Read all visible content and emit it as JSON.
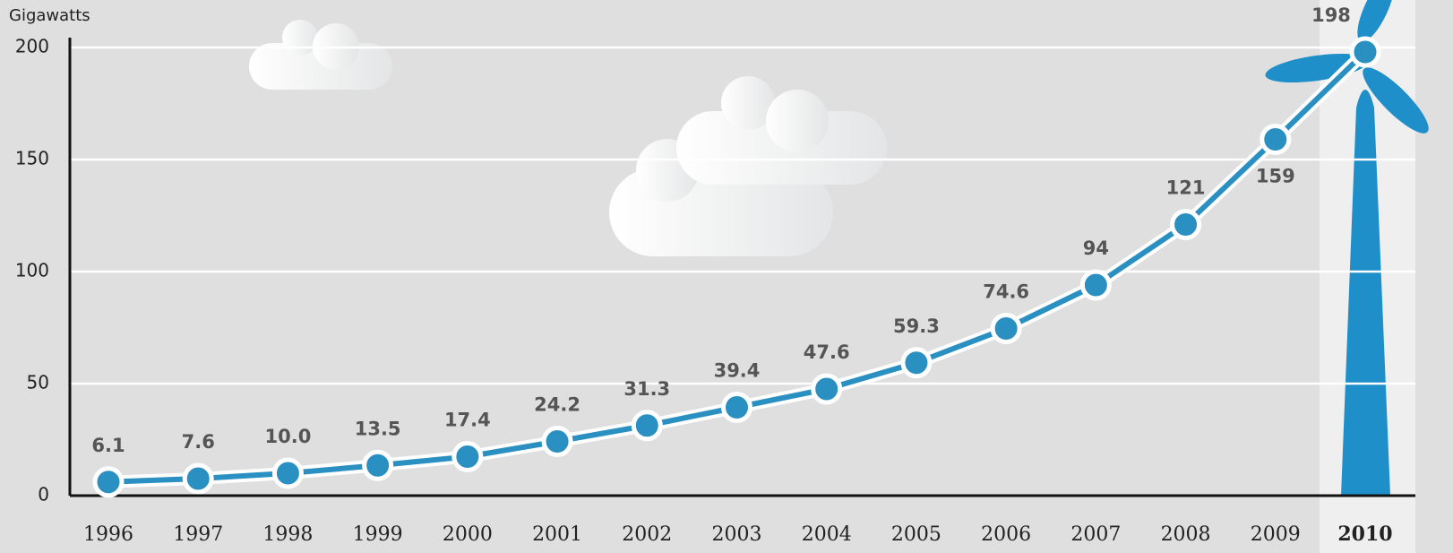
{
  "chart_data": {
    "type": "line",
    "y_label": "Gigawatts",
    "categories": [
      "1996",
      "1997",
      "1998",
      "1999",
      "2000",
      "2001",
      "2002",
      "2003",
      "2004",
      "2005",
      "2006",
      "2007",
      "2008",
      "2009",
      "2010"
    ],
    "series": [
      {
        "name": "Gigawatts",
        "color": "#2a8fc1",
        "values": [
          6.1,
          7.6,
          10.0,
          13.5,
          17.4,
          24.2,
          31.3,
          39.4,
          47.6,
          59.3,
          74.6,
          94,
          121,
          159,
          198
        ],
        "value_labels": [
          "6.1",
          "7.6",
          "10.0",
          "13.5",
          "17.4",
          "24.2",
          "31.3",
          "39.4",
          "47.6",
          "59.3",
          "74.6",
          "94",
          "121",
          "159",
          "198"
        ]
      }
    ],
    "ylim": [
      0,
      200
    ],
    "yticks": [
      0,
      50,
      100,
      150,
      200
    ],
    "grid": true
  }
}
